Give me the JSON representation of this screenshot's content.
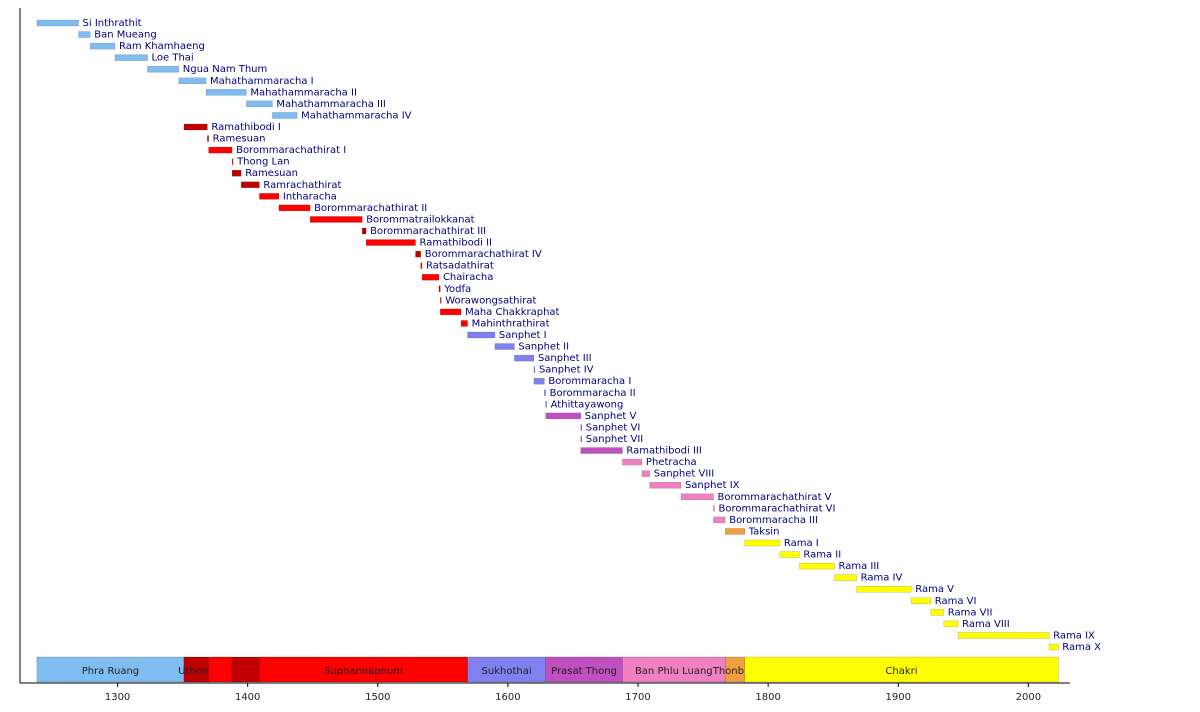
{
  "chart_data": {
    "type": "timeline",
    "reigns": [
      {
        "name": "Si Inthrathit",
        "start": 1238,
        "end": 1270,
        "color": "#7fbcf0"
      },
      {
        "name": "Ban Mueang",
        "start": 1270,
        "end": 1279,
        "color": "#7fbcf0"
      },
      {
        "name": "Ram Khamhaeng",
        "start": 1279,
        "end": 1298,
        "color": "#7fbcf0"
      },
      {
        "name": "Loe Thai",
        "start": 1298,
        "end": 1323,
        "color": "#7fbcf0"
      },
      {
        "name": "Ngua Nam Thum",
        "start": 1323,
        "end": 1347,
        "color": "#7fbcf0"
      },
      {
        "name": "Mahathammaracha I",
        "start": 1347,
        "end": 1368,
        "color": "#7fbcf0"
      },
      {
        "name": "Mahathammaracha II",
        "start": 1368,
        "end": 1399,
        "color": "#7fbcf0"
      },
      {
        "name": "Mahathammaracha III",
        "start": 1399,
        "end": 1419,
        "color": "#7fbcf0"
      },
      {
        "name": "Mahathammaracha IV",
        "start": 1419,
        "end": 1438,
        "color": "#7fbcf0"
      },
      {
        "name": "Ramathibodi I",
        "start": 1351,
        "end": 1369,
        "color": "#c00000"
      },
      {
        "name": "Ramesuan",
        "start": 1369,
        "end": 1370,
        "color": "#c00000"
      },
      {
        "name": "Borommarachathirat I",
        "start": 1370,
        "end": 1388,
        "color": "#ff0000"
      },
      {
        "name": "Thong Lan",
        "start": 1388,
        "end": 1388.5,
        "color": "#ff0000"
      },
      {
        "name": "Ramesuan",
        "start": 1388,
        "end": 1395,
        "color": "#c00000"
      },
      {
        "name": "Ramrachathirat",
        "start": 1395,
        "end": 1409,
        "color": "#c00000"
      },
      {
        "name": "Intharacha",
        "start": 1409,
        "end": 1424,
        "color": "#ff0000"
      },
      {
        "name": "Borommarachathirat II",
        "start": 1424,
        "end": 1448,
        "color": "#ff0000"
      },
      {
        "name": "Borommatrailokkanat",
        "start": 1448,
        "end": 1488,
        "color": "#ff0000"
      },
      {
        "name": "Borommarachathirat III",
        "start": 1488,
        "end": 1491,
        "color": "#c00000"
      },
      {
        "name": "Ramathibodi II",
        "start": 1491,
        "end": 1529,
        "color": "#ff0000"
      },
      {
        "name": "Borommarachathirat IV",
        "start": 1529,
        "end": 1533,
        "color": "#c00000"
      },
      {
        "name": "Ratsadathirat",
        "start": 1533,
        "end": 1534,
        "color": "#ff0000"
      },
      {
        "name": "Chairacha",
        "start": 1534,
        "end": 1547,
        "color": "#ff0000"
      },
      {
        "name": "Yodfa",
        "start": 1547,
        "end": 1548,
        "color": "#c00000"
      },
      {
        "name": "Worawongsathirat",
        "start": 1548,
        "end": 1548.5,
        "color": "#ff0000"
      },
      {
        "name": "Maha Chakkraphat",
        "start": 1548,
        "end": 1564,
        "color": "#ff0000"
      },
      {
        "name": "Mahinthrathirat",
        "start": 1564,
        "end": 1569,
        "color": "#ff0000"
      },
      {
        "name": "Sanphet I",
        "start": 1569,
        "end": 1590,
        "color": "#8080f0"
      },
      {
        "name": "Sanphet II",
        "start": 1590,
        "end": 1605,
        "color": "#8080f0"
      },
      {
        "name": "Sanphet III",
        "start": 1605,
        "end": 1620,
        "color": "#8080f0"
      },
      {
        "name": "Sanphet IV",
        "start": 1620,
        "end": 1620.5,
        "color": "#8080f0"
      },
      {
        "name": "Borommaracha I",
        "start": 1620,
        "end": 1628,
        "color": "#8080f0"
      },
      {
        "name": "Borommaracha II",
        "start": 1628,
        "end": 1629,
        "color": "#8080f0"
      },
      {
        "name": "Athittayawong",
        "start": 1629,
        "end": 1629.5,
        "color": "#8080f0"
      },
      {
        "name": "Sanphet V",
        "start": 1629,
        "end": 1656,
        "color": "#c050c0"
      },
      {
        "name": "Sanphet VI",
        "start": 1656,
        "end": 1656.5,
        "color": "#c050c0"
      },
      {
        "name": "Sanphet VII",
        "start": 1656,
        "end": 1656.5,
        "color": "#c050c0"
      },
      {
        "name": "Ramathibodi III",
        "start": 1656,
        "end": 1688,
        "color": "#c050c0"
      },
      {
        "name": "Phetracha",
        "start": 1688,
        "end": 1703,
        "color": "#f080c0"
      },
      {
        "name": "Sanphet VIII",
        "start": 1703,
        "end": 1709,
        "color": "#f080c0"
      },
      {
        "name": "Sanphet IX",
        "start": 1709,
        "end": 1733,
        "color": "#f080c0"
      },
      {
        "name": "Borommarachathirat V",
        "start": 1733,
        "end": 1758,
        "color": "#f080c0"
      },
      {
        "name": "Borommarachathirat VI",
        "start": 1758,
        "end": 1758.5,
        "color": "#f080c0"
      },
      {
        "name": "Borommaracha III",
        "start": 1758,
        "end": 1767,
        "color": "#f080c0"
      },
      {
        "name": "Taksin",
        "start": 1767,
        "end": 1782,
        "color": "#f0a040"
      },
      {
        "name": "Rama I",
        "start": 1782,
        "end": 1809,
        "color": "#ffff00"
      },
      {
        "name": "Rama II",
        "start": 1809,
        "end": 1824,
        "color": "#ffff00"
      },
      {
        "name": "Rama III",
        "start": 1824,
        "end": 1851,
        "color": "#ffff00"
      },
      {
        "name": "Rama IV",
        "start": 1851,
        "end": 1868,
        "color": "#ffff00"
      },
      {
        "name": "Rama V",
        "start": 1868,
        "end": 1910,
        "color": "#ffff00"
      },
      {
        "name": "Rama VI",
        "start": 1910,
        "end": 1925,
        "color": "#ffff00"
      },
      {
        "name": "Rama VII",
        "start": 1925,
        "end": 1935,
        "color": "#ffff00"
      },
      {
        "name": "Rama VIII",
        "start": 1935,
        "end": 1946,
        "color": "#ffff00"
      },
      {
        "name": "Rama IX",
        "start": 1946,
        "end": 2016,
        "color": "#ffff00"
      },
      {
        "name": "Rama X",
        "start": 2016,
        "end": 2023,
        "color": "#ffff00"
      }
    ],
    "eras": [
      {
        "name": "Phra Ruang",
        "start": 1238,
        "end": 1351,
        "color": "#7fbcf0"
      },
      {
        "name": "Uthong",
        "start": 1351,
        "end": 1370,
        "color": "#c00000"
      },
      {
        "name": null,
        "start": 1370,
        "end": 1388,
        "color": "#ff0000"
      },
      {
        "name": null,
        "start": 1388,
        "end": 1409,
        "color": "#c00000"
      },
      {
        "name": "Suphannaphum",
        "start": 1409,
        "end": 1569,
        "color": "#ff0000"
      },
      {
        "name": "Sukhothai",
        "start": 1569,
        "end": 1629,
        "color": "#8080f0"
      },
      {
        "name": "Prasat Thong",
        "start": 1629,
        "end": 1688,
        "color": "#c050c0"
      },
      {
        "name": "Ban Phlu Luang",
        "start": 1688,
        "end": 1767,
        "color": "#f080c0"
      },
      {
        "name": "Thonburi",
        "start": 1767,
        "end": 1782,
        "color": "#f0a040"
      },
      {
        "name": "Chakri",
        "start": 1782,
        "end": 2023,
        "color": "#ffff00"
      }
    ],
    "xlim": [
      1225,
      2032
    ],
    "xticks": [
      1300,
      1400,
      1500,
      1600,
      1700,
      1800,
      1900,
      2000
    ]
  }
}
